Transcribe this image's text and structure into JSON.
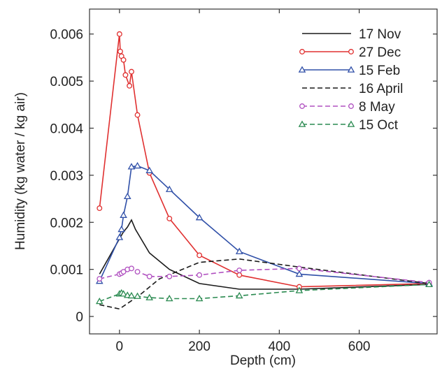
{
  "chart_data": {
    "type": "line",
    "title": "",
    "xlabel": "Depth (cm)",
    "ylabel": "Humidity (kg water / kg air)",
    "xlim": [
      -75,
      795
    ],
    "ylim": [
      -0.00037,
      0.00653
    ],
    "xticks": [
      0,
      200,
      400,
      600
    ],
    "xtick_labels": [
      "0",
      "200",
      "400",
      "600"
    ],
    "yticks": [
      0,
      0.001,
      0.002,
      0.003,
      0.004,
      0.005,
      0.006
    ],
    "ytick_labels": [
      "0",
      "0.001",
      "0.002",
      "0.003",
      "0.004",
      "0.005",
      "0.006"
    ],
    "grid": false,
    "legend_position": "top-right",
    "series": [
      {
        "name": "17 Nov",
        "color": "#1a1a1a",
        "dash": "solid",
        "marker": "none",
        "x": [
          -50,
          0,
          10,
          20,
          30,
          40,
          75,
          125,
          200,
          300,
          450,
          775
        ],
        "y": [
          0.0009,
          0.00165,
          0.0018,
          0.0019,
          0.00205,
          0.00185,
          0.00135,
          0.001,
          0.0007,
          0.00058,
          0.00058,
          0.00068
        ]
      },
      {
        "name": "27 Dec",
        "color": "#e03030",
        "dash": "solid",
        "marker": "circle",
        "x": [
          -50,
          0,
          2,
          5,
          10,
          15,
          25,
          30,
          45,
          75,
          125,
          200,
          300,
          450,
          775
        ],
        "y": [
          0.0023,
          0.006,
          0.00563,
          0.00553,
          0.00545,
          0.00513,
          0.0049,
          0.0052,
          0.00428,
          0.00305,
          0.00208,
          0.0013,
          0.00088,
          0.00063,
          0.0007
        ]
      },
      {
        "name": "15 Feb",
        "color": "#3050a8",
        "dash": "solid",
        "marker": "triangle",
        "x": [
          -50,
          0,
          5,
          10,
          20,
          30,
          45,
          75,
          125,
          200,
          300,
          450,
          775
        ],
        "y": [
          0.00075,
          0.00168,
          0.00185,
          0.00215,
          0.00255,
          0.00318,
          0.0032,
          0.0031,
          0.0027,
          0.0021,
          0.00138,
          0.0009,
          0.0007
        ]
      },
      {
        "name": "16 April",
        "color": "#1a1a1a",
        "dash": "dashed",
        "marker": "none",
        "x": [
          -50,
          0,
          50,
          100,
          200,
          300,
          450,
          775
        ],
        "y": [
          0.00025,
          0.00016,
          0.00045,
          0.0008,
          0.00115,
          0.00122,
          0.00105,
          0.0007
        ]
      },
      {
        "name": "8 May",
        "color": "#b050c0",
        "dash": "dashed",
        "marker": "circle",
        "x": [
          -50,
          0,
          5,
          10,
          20,
          30,
          45,
          75,
          125,
          200,
          300,
          450,
          775
        ],
        "y": [
          0.0008,
          0.0009,
          0.00092,
          0.00095,
          0.001,
          0.00102,
          0.00095,
          0.00085,
          0.00085,
          0.00088,
          0.00098,
          0.00102,
          0.00072
        ]
      },
      {
        "name": "15 Oct",
        "color": "#2a8a50",
        "dash": "dashed",
        "marker": "triangle",
        "x": [
          -50,
          0,
          5,
          10,
          20,
          30,
          45,
          75,
          125,
          200,
          300,
          450,
          775
        ],
        "y": [
          0.00032,
          0.00048,
          0.0005,
          0.00048,
          0.00045,
          0.00044,
          0.00043,
          0.0004,
          0.00038,
          0.00038,
          0.00044,
          0.00055,
          0.00068
        ]
      }
    ]
  }
}
